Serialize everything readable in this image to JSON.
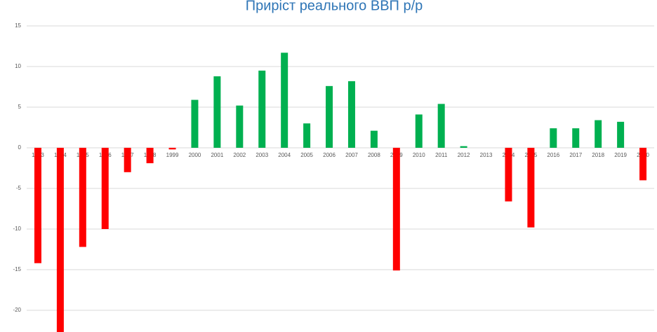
{
  "chart_data": {
    "type": "bar",
    "title": "Приріст реального ВВП р/р",
    "categories": [
      "1993",
      "1994",
      "1995",
      "1996",
      "1997",
      "1998",
      "1999",
      "2000",
      "2001",
      "2002",
      "2003",
      "2004",
      "2005",
      "2006",
      "2007",
      "2008",
      "2009",
      "2010",
      "2011",
      "2012",
      "2013",
      "2014",
      "2015",
      "2016",
      "2017",
      "2018",
      "2019",
      "2020"
    ],
    "values": [
      -14.2,
      -22.9,
      -12.2,
      -10.0,
      -3.0,
      -1.9,
      -0.2,
      5.9,
      8.8,
      5.2,
      9.5,
      11.7,
      3.0,
      7.6,
      8.2,
      2.1,
      -15.1,
      4.1,
      5.4,
      0.2,
      0,
      -6.6,
      -9.8,
      2.4,
      2.4,
      3.4,
      3.2,
      -4.0
    ],
    "positive_color": "#00b050",
    "negative_color": "#ff0000",
    "ylim": [
      -25,
      15
    ],
    "yticks": [
      -20,
      -15,
      -10,
      -5,
      0,
      5,
      10,
      15
    ],
    "grid": true
  }
}
